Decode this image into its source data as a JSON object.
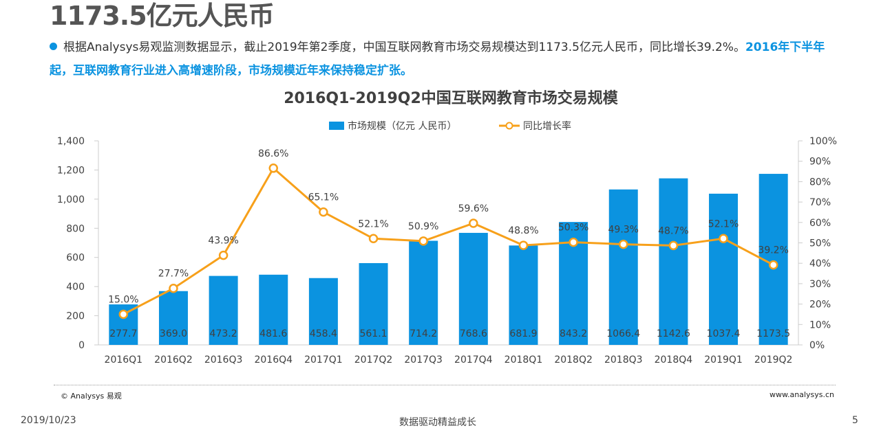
{
  "headline": "1173.5亿元人民币",
  "bullet": {
    "text_normal": "根据Analysys易观监测数据显示，截止2019年第2季度，中国互联网教育市场交易规模达到1173.5亿元人民币，同比增长39.2%。",
    "text_highlight": "2016年下半年起，互联网教育行业进入高增速阶段，市场规模近年来保持稳定扩张。"
  },
  "chart_data": {
    "type": "bar+line",
    "title": "2016Q1-2019Q2中国互联网教育市场交易规模",
    "categories": [
      "2016Q1",
      "2016Q2",
      "2016Q3",
      "2016Q4",
      "2017Q1",
      "2017Q2",
      "2017Q3",
      "2017Q4",
      "2018Q1",
      "2018Q2",
      "2018Q3",
      "2018Q4",
      "2019Q1",
      "2019Q2"
    ],
    "series": [
      {
        "name": "市场规模（亿元 人民币）",
        "type": "bar",
        "axis": "left",
        "values": [
          277.7,
          369.0,
          473.2,
          481.6,
          458.4,
          561.1,
          714.2,
          768.6,
          681.9,
          843.2,
          1066.4,
          1142.6,
          1037.4,
          1173.5
        ],
        "labels": [
          "277.7",
          "369.0",
          "473.2",
          "481.6",
          "458.4",
          "561.1",
          "714.2",
          "768.6",
          "681.9",
          "843.2",
          "1066.4",
          "1142.6",
          "1037.4",
          "1173.5"
        ]
      },
      {
        "name": "同比增长率",
        "type": "line",
        "axis": "right",
        "values": [
          15.0,
          27.7,
          43.9,
          86.6,
          65.1,
          52.1,
          50.9,
          59.6,
          48.8,
          50.3,
          49.3,
          48.7,
          52.1,
          39.2
        ],
        "labels": [
          "15.0%",
          "27.7%",
          "43.9%",
          "86.6%",
          "65.1%",
          "52.1%",
          "50.9%",
          "59.6%",
          "48.8%",
          "50.3%",
          "49.3%",
          "48.7%",
          "52.1%",
          "39.2%"
        ]
      }
    ],
    "left_axis": {
      "range": [
        0,
        1400
      ],
      "ticks": [
        "0",
        "200",
        "400",
        "600",
        "800",
        "1,000",
        "1,200",
        "1,400"
      ]
    },
    "right_axis": {
      "range": [
        0,
        100
      ],
      "ticks": [
        "0%",
        "10%",
        "20%",
        "30%",
        "40%",
        "50%",
        "60%",
        "70%",
        "80%",
        "90%",
        "100%"
      ]
    },
    "legend_position": "top",
    "grid": false,
    "colors": {
      "bar": "#0b93e0",
      "line": "#f7a01a"
    }
  },
  "footer": {
    "copyright": "© Analysys 易观",
    "website": "www.analysys.cn",
    "date": "2019/10/23",
    "slogan": "数据驱动精益成长",
    "page": "5"
  }
}
